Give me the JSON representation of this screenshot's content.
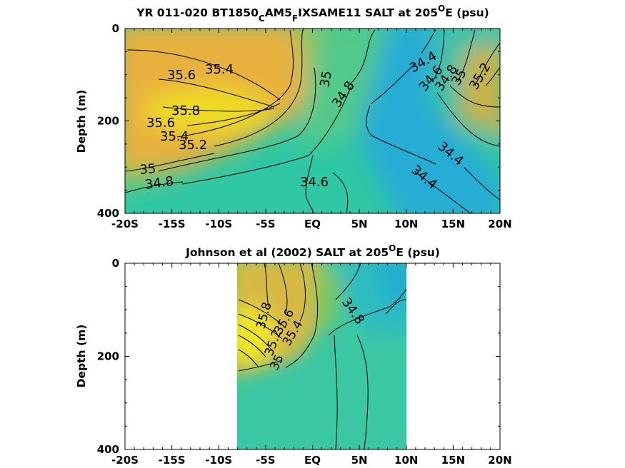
{
  "chart_data": [
    {
      "type": "heatmap",
      "title": "YR 011-020 BT1850",
      "title_sub1": "C",
      "title_mid": "AM5",
      "title_sub2": "F",
      "title_tail": "IXSAME11 SALT at 205",
      "title_sup": "O",
      "title_end": "E (psu)",
      "ylabel": "Depth (m)",
      "xlim": [
        -20,
        20
      ],
      "ylim": [
        400,
        0
      ],
      "x_ticks": [
        "-20S",
        "-15S",
        "-10S",
        "-5S",
        "EQ",
        "5N",
        "10N",
        "15N",
        "20N"
      ],
      "y_ticks": [
        "0",
        "200",
        "400"
      ],
      "contour_levels": [
        34.4,
        34.6,
        34.8,
        35,
        35.2,
        35.4,
        35.6,
        35.8
      ],
      "contour_labels": [
        "35.6",
        "35.4",
        "35.8",
        "35.6",
        "35.4",
        "35.2",
        "35",
        "34.8",
        "35",
        "34.8",
        "34.6",
        "34.4",
        "34.6",
        "34.8",
        "35",
        "35.2",
        "34.4",
        "34.4"
      ],
      "grid": false,
      "colormap": [
        "#1f9fdb",
        "#19bfc0",
        "#44cf8a",
        "#a9c64a",
        "#f1b43a",
        "#f3e91b"
      ]
    },
    {
      "type": "heatmap",
      "title": "Johnson et al (2002) SALT at 205",
      "title_sup": "O",
      "title_end": "E (psu)",
      "ylabel": "Depth (m)",
      "xlim": [
        -20,
        20
      ],
      "ylim": [
        400,
        0
      ],
      "data_xrange": [
        -8,
        10
      ],
      "x_ticks": [
        "-20S",
        "-15S",
        "-10S",
        "-5S",
        "EQ",
        "5N",
        "10N",
        "15N",
        "20N"
      ],
      "y_ticks": [
        "0",
        "200",
        "400"
      ],
      "contour_labels": [
        "34.8",
        "35.8",
        "35.6",
        "35.4",
        "35.2",
        "35"
      ],
      "grid": false
    }
  ]
}
